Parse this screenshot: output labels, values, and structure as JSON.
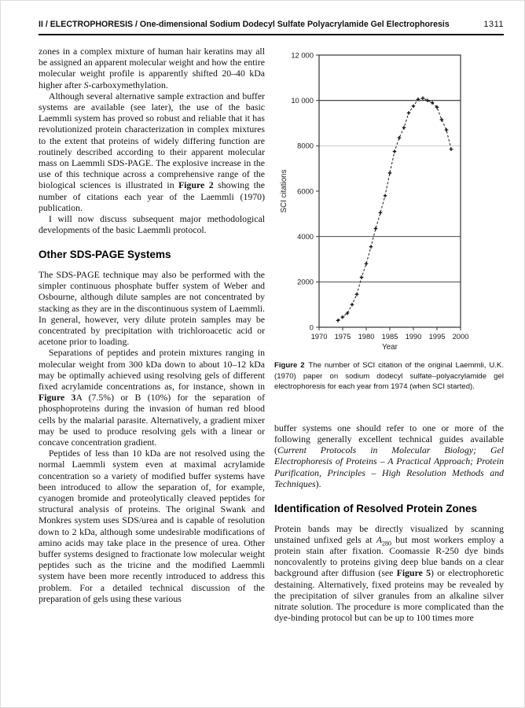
{
  "header": {
    "title": "II / ELECTROPHORESIS / One-dimensional Sodium Dodecyl Sulfate Polyacrylamide Gel Electrophoresis",
    "page_number": "1311"
  },
  "left_column": {
    "p1": [
      {
        "t": "zones in a complex mixture of human hair keratins may all be assigned an apparent molecular weight and how the entire molecular weight profile is apparently shifted 20–40 kDa higher after "
      },
      {
        "t": "S",
        "i": true
      },
      {
        "t": "-carboxymethylation."
      }
    ],
    "p2": [
      {
        "t": "Although several alternative sample extraction and buffer systems are available (see later), the use of the basic Laemmli system has proved so robust and reliable that it has revolutionized protein characterization in complex mixtures to the extent that proteins of widely differing function are routinely described according to their apparent molecular mass on Laemmli SDS-PAGE. The explosive increase in the use of this technique across a comprehensive range of the biological sciences is illustrated in "
      },
      {
        "t": "Figure 2",
        "b": true
      },
      {
        "t": " showing the number of citations each year of the Laemmli (1970) publication."
      }
    ],
    "p3": [
      {
        "t": "I will now discuss subsequent major methodological developments of the basic Laemmli protocol."
      }
    ],
    "section_heading": "Other SDS-PAGE Systems",
    "p4": [
      {
        "t": "The SDS-PAGE technique may also be performed with the simpler continuous phosphate buffer system of Weber and Osbourne, although dilute samples are not concentrated by stacking as they are in the discontinuous system of Laemmli. In general, however, very dilute protein samples may be concentrated by precipitation with trichloroacetic acid or acetone prior to loading."
      }
    ],
    "p5": [
      {
        "t": "Separations of peptides and protein mixtures ranging in molecular weight from 300 kDa down to about 10–12 kDa may be optimally achieved using resolving gels of different fixed acrylamide concentrations as, for instance, shown in "
      },
      {
        "t": "Figure 3",
        "b": true
      },
      {
        "t": "A (7.5%) or B (10%) for the separation of phosphoproteins during the invasion of human red blood cells by the malarial parasite. Alternatively, a gradient mixer may be used to produce resolving gels with a linear or concave concentration gradient."
      }
    ],
    "p6": [
      {
        "t": "Peptides of less than 10 kDa are not resolved using the normal Laemmli system even at maximal acrylamide concentration so a variety of modified buffer systems have been introduced to allow the separation of, for example, cyanogen bromide and proteolytically cleaved peptides for structural analysis of proteins. The original Swank and Monkres system uses SDS/urea and is capable of resolution down to 2 kDa, although some undesirable modifications of amino acids may take place in the presence of urea. Other buffer systems designed to fractionate low molecular weight peptides such as the tricine and the modified Laemmli system have been more recently introduced to address this problem. For a detailed technical discussion of the preparation of gels using these various"
      }
    ]
  },
  "right_column": {
    "figure_caption": [
      {
        "t": "Figure 2",
        "b": true
      },
      {
        "t": " The number of SCI citation of the original Laemmli, U.K. (1970) paper on sodium dodecyl sulfate–polyacrylamide gel electrophoresis for each year from 1974 (when SCI started)."
      }
    ],
    "p1": [
      {
        "t": "buffer systems one should refer to one or more of the following generally excellent technical guides available ("
      },
      {
        "t": "Current Protocols in Molecular Biology; Gel Electrophoresis of Proteins – A Practical Approach; Protein Purification, Principles – High Resolution Methods and Techniques",
        "i": true
      },
      {
        "t": ")."
      }
    ],
    "section_heading": "Identification of Resolved Protein Zones",
    "p2": [
      {
        "t": "Protein bands may be directly visualized by scanning unstained unfixed gels at "
      },
      {
        "t": "A",
        "i": true
      },
      {
        "t": "280",
        "sub": true
      },
      {
        "t": " but most workers employ a protein stain after fixation. Coomassie R-250 dye binds noncovalently to proteins giving deep blue bands on a clear background after diffusion (see "
      },
      {
        "t": "Figure 5",
        "b": true
      },
      {
        "t": ") or electrophoretic destaining. Alternatively, fixed proteins may be revealed by the precipitation of silver granules from an alkaline silver nitrate solution. The procedure is more complicated than the dye-binding protocol but can be up to 100 times more"
      }
    ]
  },
  "chart_data": {
    "type": "line",
    "title": "",
    "xlabel": "Year",
    "ylabel": "SCI citations",
    "xlim": [
      1970,
      2000
    ],
    "ylim": [
      0,
      12000
    ],
    "xticks": [
      1970,
      1975,
      1980,
      1985,
      1990,
      1995,
      2000
    ],
    "yticks": [
      {
        "value": 0,
        "label": "0"
      },
      {
        "value": 2000,
        "label": "2000"
      },
      {
        "value": 4000,
        "label": "4000"
      },
      {
        "value": 6000,
        "label": "6000"
      },
      {
        "value": 8000,
        "label": "8000"
      },
      {
        "value": 10000,
        "label": "10 000"
      },
      {
        "value": 12000,
        "label": "12 000"
      }
    ],
    "gridlines": [
      {
        "value": 2000,
        "color": "#4a4a4a"
      },
      {
        "value": 4000,
        "color": "#4a4a4a"
      },
      {
        "value": 8000,
        "color": "#c8c8c8"
      },
      {
        "value": 10000,
        "color": "#2f2f2f"
      }
    ],
    "marker": "plus",
    "line_style": "dashed",
    "legend": null,
    "series": [
      {
        "name": "SCI citations per year",
        "x": [
          1974,
          1975,
          1976,
          1977,
          1978,
          1979,
          1980,
          1981,
          1982,
          1983,
          1984,
          1985,
          1986,
          1987,
          1988,
          1989,
          1990,
          1991,
          1992,
          1993,
          1994,
          1995,
          1996,
          1997,
          1998
        ],
        "y": [
          300,
          450,
          620,
          1000,
          1450,
          2200,
          2800,
          3550,
          4350,
          5050,
          5800,
          6800,
          7750,
          8350,
          8800,
          9450,
          9750,
          10050,
          10100,
          10000,
          9900,
          9700,
          9150,
          8700,
          7850
        ]
      }
    ]
  }
}
